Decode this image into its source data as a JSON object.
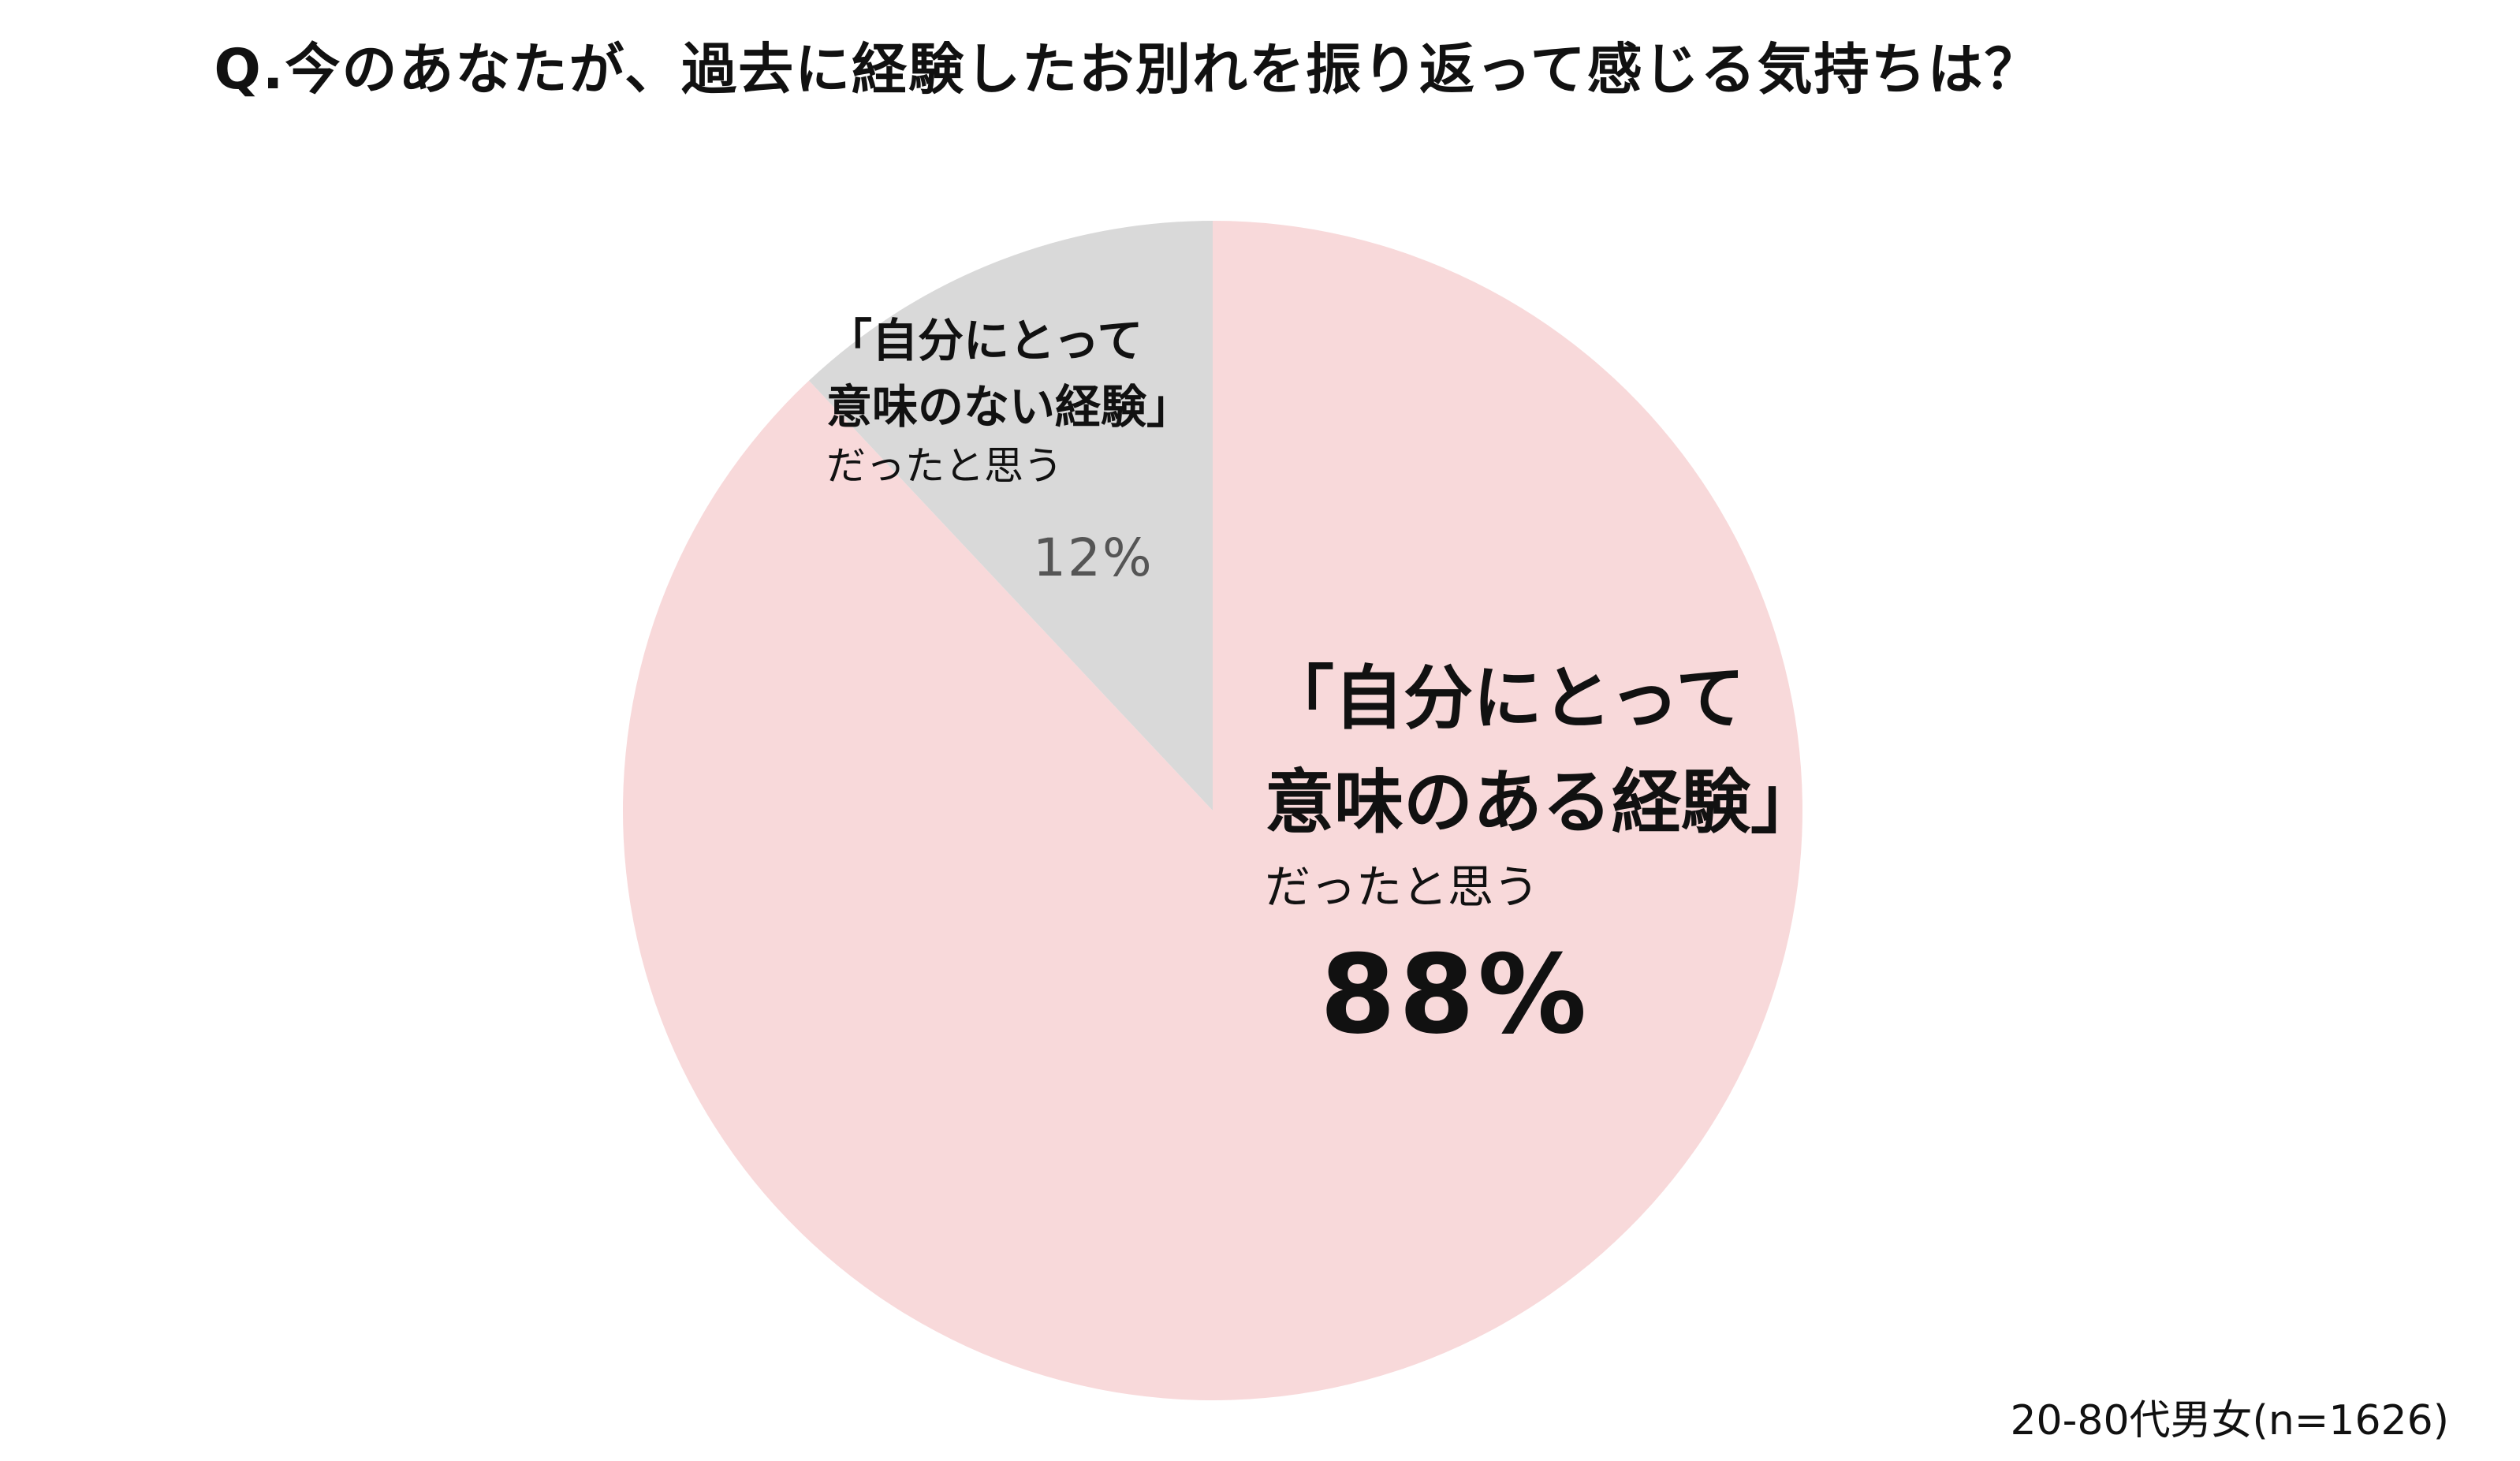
{
  "title": "Q.今のあなたが、過去に経験したお別れを振り返って感じる気持ちは？",
  "note": "20-80代男女(n=1626)",
  "chart_data": {
    "type": "pie",
    "title": "Q.今のあなたが、過去に経験したお別れを振り返って感じる気持ちは？",
    "start": "top",
    "direction": "clockwise",
    "slices": [
      {
        "label_line1": "「自分にとって",
        "label_line2": "意味のある経験」",
        "label_line3": "だったと思う",
        "value": 88,
        "value_label": "88%",
        "color": "#f8d9da"
      },
      {
        "label_line1": "「自分にとって",
        "label_line2": "意味のない経験」",
        "label_line3": "だったと思う",
        "value": 12,
        "value_label": "12%",
        "color": "#d9d9d9"
      }
    ]
  }
}
